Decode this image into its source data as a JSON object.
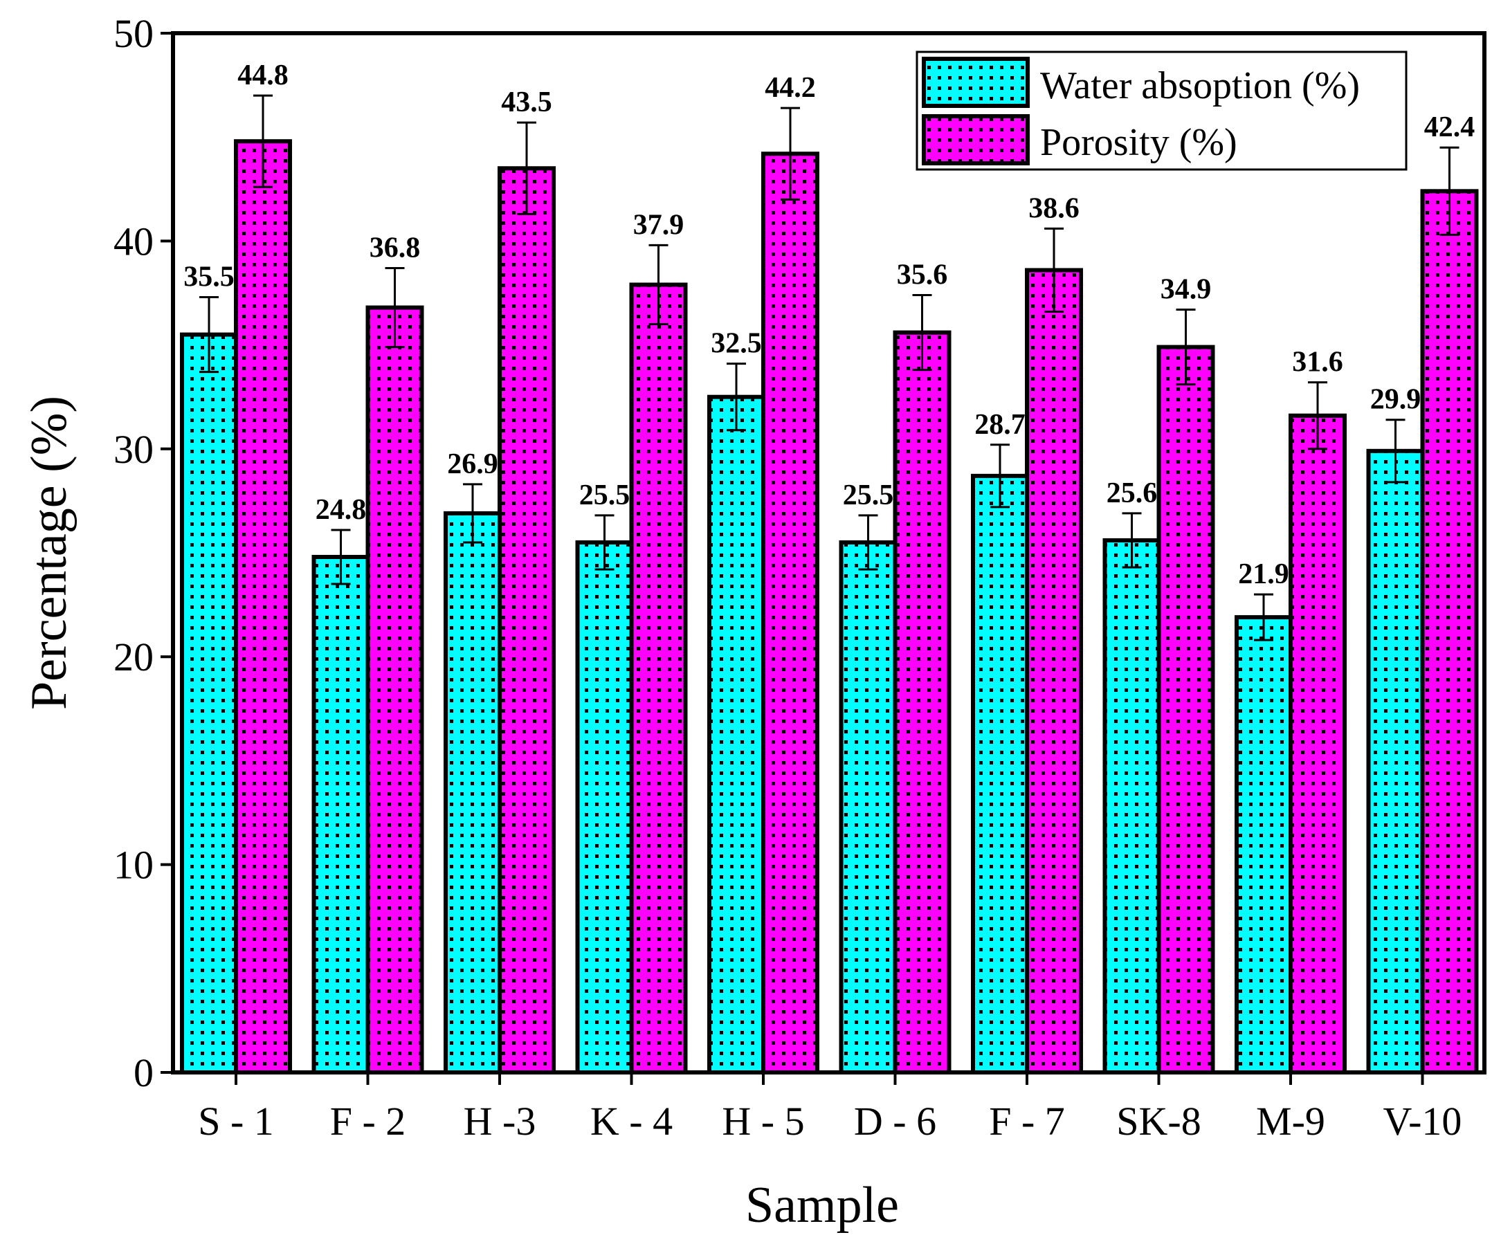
{
  "chart_data": {
    "type": "bar",
    "title": "",
    "xlabel": "Sample",
    "ylabel": "Percentage (%)",
    "ylim": [
      0,
      50
    ],
    "yticks": [
      0,
      10,
      20,
      30,
      40,
      50
    ],
    "categories": [
      "S - 1",
      "F - 2",
      "H -3",
      "K - 4",
      "H - 5",
      "D - 6",
      "F - 7",
      "SK-8",
      "M-9",
      "V-10"
    ],
    "series": [
      {
        "name": "Water absoption (%)",
        "color": "#00FFFF",
        "values": [
          35.5,
          24.8,
          26.9,
          25.5,
          32.5,
          25.5,
          28.7,
          25.6,
          21.9,
          29.9
        ],
        "labels": [
          "35.5",
          "24.8",
          "26.9",
          "25.5",
          "32.5",
          "25.5",
          "28.7",
          "25.6",
          "21.9",
          "29.9"
        ],
        "errors": [
          1.8,
          1.3,
          1.4,
          1.3,
          1.6,
          1.3,
          1.5,
          1.3,
          1.1,
          1.5
        ]
      },
      {
        "name": "Porosity (%)",
        "color": "#FF00FF",
        "values": [
          44.8,
          36.8,
          43.5,
          37.9,
          44.2,
          35.6,
          38.6,
          34.9,
          31.6,
          42.4
        ],
        "labels": [
          "44.8",
          "36.8",
          "43.5",
          "37.9",
          "44.2",
          "35.6",
          "38.6",
          "34.9",
          "31.6",
          "42.4"
        ],
        "errors": [
          2.2,
          1.9,
          2.2,
          1.9,
          2.2,
          1.8,
          2.0,
          1.8,
          1.6,
          2.1
        ]
      }
    ],
    "legend_position": "top-right"
  }
}
